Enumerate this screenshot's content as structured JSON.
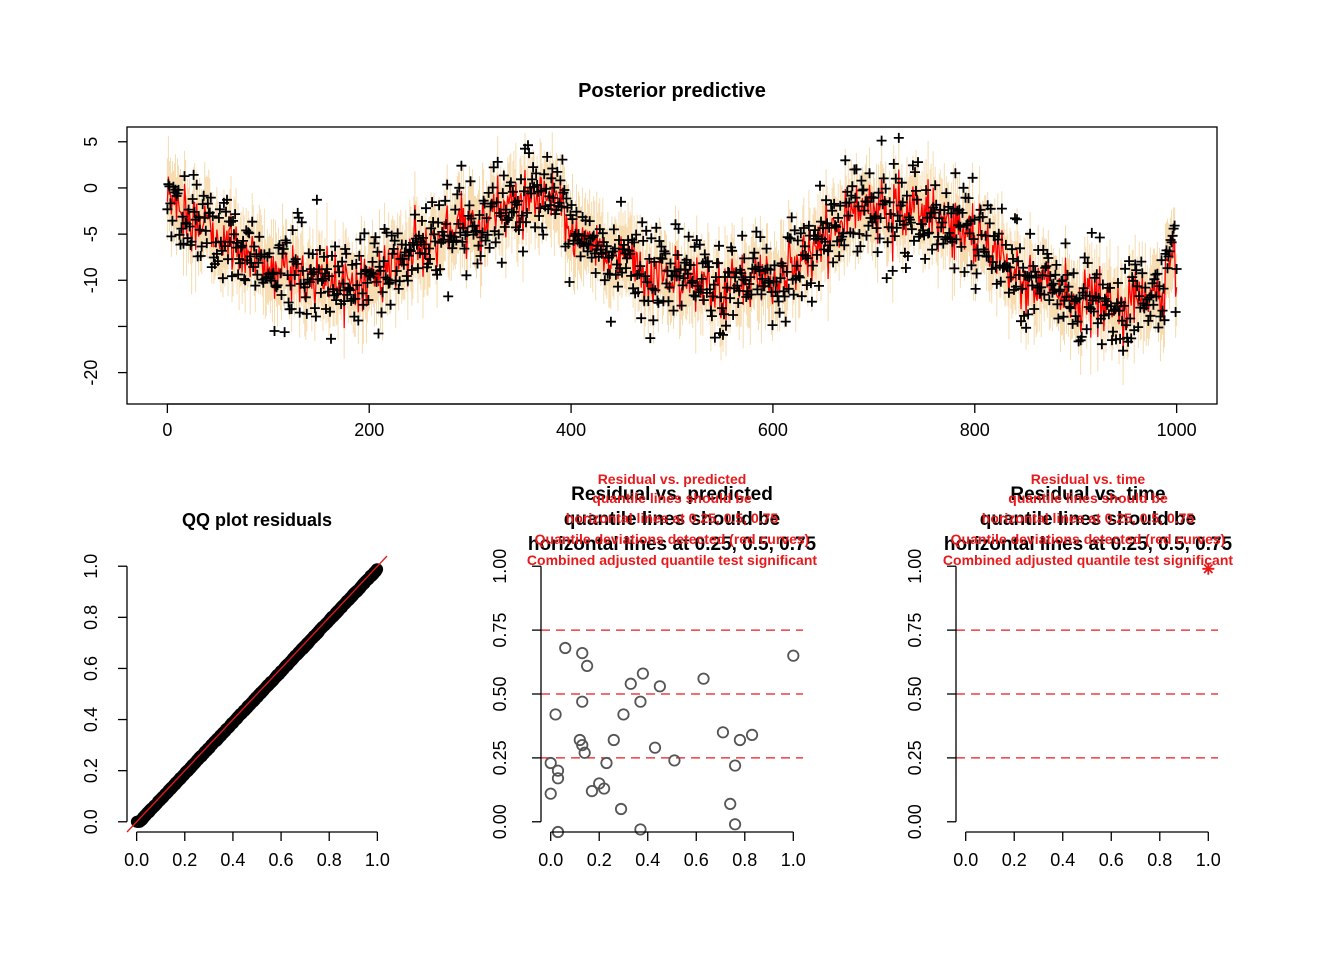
{
  "chart_data": [
    {
      "id": "posterior-predictive",
      "type": "line",
      "title": "Posterior predictive",
      "xlim": [
        -40,
        1040
      ],
      "ylim": [
        -23.4,
        6.6
      ],
      "x_ticks": [
        0,
        200,
        400,
        600,
        800,
        1000
      ],
      "y_ticks": [
        5,
        0,
        -5,
        -10,
        -15,
        -20
      ],
      "y_tick_labels": [
        "5",
        "0",
        "-5",
        "-10",
        "",
        "-20"
      ],
      "n_obs": 1000,
      "trend_knots": {
        "x": [
          0,
          30,
          60,
          100,
          150,
          200,
          250,
          300,
          340,
          380,
          410,
          450,
          500,
          550,
          600,
          640,
          670,
          700,
          740,
          780,
          820,
          860,
          900,
          940,
          980,
          1000
        ],
        "y": [
          -1,
          -4,
          -6,
          -8.5,
          -9.5,
          -10,
          -7,
          -4,
          -2,
          -1.5,
          -5,
          -8,
          -10,
          -11,
          -10,
          -7,
          -3,
          -1.5,
          -2.5,
          -4,
          -7,
          -10,
          -12,
          -13,
          -11,
          -8
        ]
      },
      "series": [
        {
          "name": "",
          "style": "predicted-interval",
          "color": "#f5d29a"
        },
        {
          "name": "",
          "style": "predicted-mean",
          "color": "#ff0000"
        },
        {
          "name": "",
          "style": "observed",
          "marker": "+",
          "color": "#000000"
        }
      ],
      "grid": false
    },
    {
      "id": "qq-plot",
      "type": "scatter",
      "title": "QQ plot residuals",
      "xlim": [
        -0.04,
        1.04
      ],
      "ylim": [
        -0.04,
        1.04
      ],
      "x_ticks": [
        0.0,
        0.2,
        0.4,
        0.6,
        0.8,
        1.0
      ],
      "x_tick_labels": [
        "0.0",
        "0.2",
        "0.4",
        "0.6",
        "0.8",
        "1.0"
      ],
      "y_ticks": [
        0.0,
        0.2,
        0.4,
        0.6,
        0.8,
        1.0
      ],
      "y_tick_labels": [
        "0.0",
        "0.2",
        "0.4",
        "0.6",
        "0.8",
        "1.0"
      ],
      "reference_line": {
        "from": [
          -0.04,
          -0.04
        ],
        "to": [
          1.04,
          1.04
        ],
        "color": "#e8191b"
      },
      "points_color": "#000000",
      "grid": false
    },
    {
      "id": "residual-vs-predicted",
      "type": "scatter",
      "title_lines": [
        "Residual vs. predicted",
        "quantile lines should be",
        "horizontal lines at 0.25, 0.5, 0.75"
      ],
      "subtitle_lines": [
        "Residual vs. predicted",
        "quantile lines should be",
        "horizontal lines at 0.25, 0.5, 0.75",
        "Quantile deviations detected (red curves)",
        "Combined adjusted quantile test significant"
      ],
      "xlim": [
        -0.04,
        1.04
      ],
      "ylim": [
        -0.04,
        1.04
      ],
      "x_ticks": [
        0.0,
        0.2,
        0.4,
        0.6,
        0.8,
        1.0
      ],
      "x_tick_labels": [
        "0.0",
        "0.2",
        "0.4",
        "0.6",
        "0.8",
        "1.0"
      ],
      "y_ticks": [
        0.0,
        0.25,
        0.5,
        0.75,
        1.0
      ],
      "y_tick_labels": [
        "0.00",
        "0.25",
        "0.50",
        "0.75",
        "1.00"
      ],
      "hlines": [
        0.25,
        0.5,
        0.75
      ],
      "points": [
        [
          0.06,
          0.68
        ],
        [
          0.13,
          0.66
        ],
        [
          0.15,
          0.61
        ],
        [
          0.0,
          0.23
        ],
        [
          0.0,
          0.11
        ],
        [
          0.02,
          0.42
        ],
        [
          0.03,
          0.2
        ],
        [
          0.03,
          0.17
        ],
        [
          0.03,
          -0.04
        ],
        [
          0.12,
          0.32
        ],
        [
          0.13,
          0.3
        ],
        [
          0.14,
          0.27
        ],
        [
          0.13,
          0.47
        ],
        [
          0.17,
          0.12
        ],
        [
          0.2,
          0.15
        ],
        [
          0.22,
          0.13
        ],
        [
          0.23,
          0.23
        ],
        [
          0.26,
          0.32
        ],
        [
          0.29,
          0.05
        ],
        [
          0.3,
          0.42
        ],
        [
          0.33,
          0.54
        ],
        [
          0.37,
          0.47
        ],
        [
          0.38,
          0.58
        ],
        [
          0.37,
          -0.03
        ],
        [
          0.43,
          0.29
        ],
        [
          0.45,
          0.53
        ],
        [
          0.51,
          0.24
        ],
        [
          0.63,
          0.56
        ],
        [
          0.71,
          0.35
        ],
        [
          0.74,
          0.07
        ],
        [
          0.76,
          0.22
        ],
        [
          0.76,
          -0.01
        ],
        [
          0.78,
          0.32
        ],
        [
          0.83,
          0.34
        ],
        [
          1.0,
          0.65
        ]
      ],
      "grid": false
    },
    {
      "id": "residual-vs-time",
      "type": "scatter",
      "title_lines": [
        "Residual vs. time",
        "quantile lines should be",
        "horizontal lines at 0.25, 0.5, 0.75"
      ],
      "subtitle_lines": [
        "Residual vs. time",
        "quantile lines should be",
        "horizontal lines at 0.25, 0.5, 0.75",
        "Quantile deviations detected (red curves)",
        "Combined adjusted quantile test significant"
      ],
      "xlim": [
        -0.04,
        1.04
      ],
      "ylim": [
        -0.04,
        1.04
      ],
      "x_ticks": [
        0.0,
        0.2,
        0.4,
        0.6,
        0.8,
        1.0
      ],
      "x_tick_labels": [
        "0.0",
        "0.2",
        "0.4",
        "0.6",
        "0.8",
        "1.0"
      ],
      "y_ticks": [
        0.0,
        0.25,
        0.5,
        0.75,
        1.0
      ],
      "y_tick_labels": [
        "0.00",
        "0.25",
        "0.50",
        "0.75",
        "1.00"
      ],
      "hlines": [
        0.25,
        0.5,
        0.75
      ],
      "star_points": [
        [
          1.0,
          0.99
        ]
      ],
      "star_color": "#e8191b",
      "grid": false
    }
  ]
}
